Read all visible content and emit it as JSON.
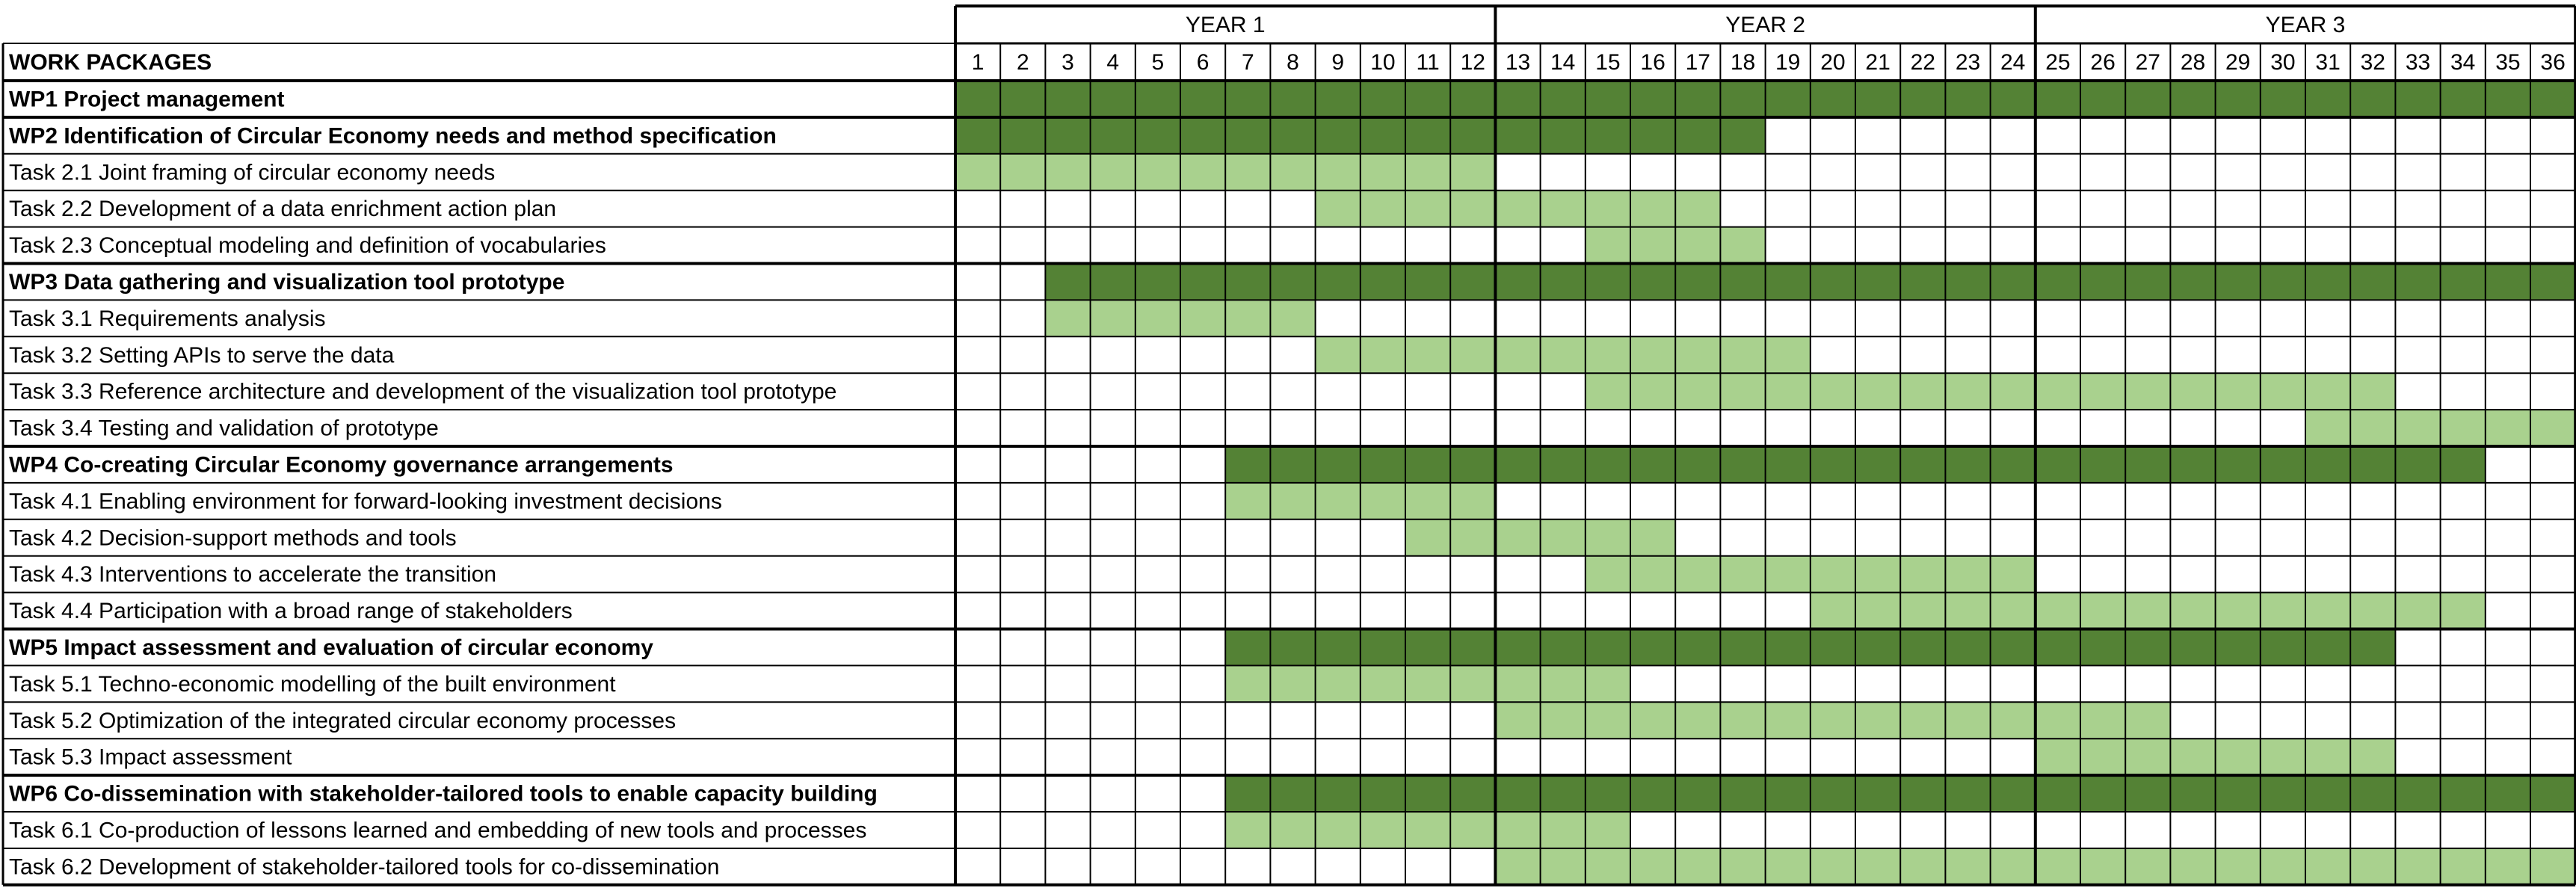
{
  "chart_data": {
    "type": "table",
    "subtype": "gantt",
    "header": "WORK PACKAGES",
    "years": [
      "YEAR 1",
      "YEAR 2",
      "YEAR 3"
    ],
    "months": [
      1,
      2,
      3,
      4,
      5,
      6,
      7,
      8,
      9,
      10,
      11,
      12,
      13,
      14,
      15,
      16,
      17,
      18,
      19,
      20,
      21,
      22,
      23,
      24,
      25,
      26,
      27,
      28,
      29,
      30,
      31,
      32,
      33,
      34,
      35,
      36
    ],
    "colors": {
      "work_package_bar": "#548235",
      "task_bar": "#a9d18e",
      "grid": "#000000",
      "background": "#ffffff"
    },
    "rows": [
      {
        "label": "WP1 Project management",
        "kind": "wp",
        "start": 1,
        "end": 36
      },
      {
        "label": "WP2 Identification of Circular Economy needs and method specification",
        "kind": "wp",
        "start": 1,
        "end": 18
      },
      {
        "label": "Task 2.1 Joint framing of circular economy needs",
        "kind": "task",
        "start": 1,
        "end": 12
      },
      {
        "label": "Task 2.2 Development of a data enrichment action plan",
        "kind": "task",
        "start": 9,
        "end": 17
      },
      {
        "label": "Task 2.3 Conceptual modeling and definition of vocabularies",
        "kind": "task",
        "start": 15,
        "end": 18
      },
      {
        "label": "WP3 Data gathering and visualization tool prototype",
        "kind": "wp",
        "start": 3,
        "end": 36
      },
      {
        "label": "Task 3.1 Requirements analysis",
        "kind": "task",
        "start": 3,
        "end": 8
      },
      {
        "label": "Task 3.2 Setting APIs to serve the data",
        "kind": "task",
        "start": 9,
        "end": 19
      },
      {
        "label": "Task 3.3 Reference architecture and development of the visualization tool prototype",
        "kind": "task",
        "start": 15,
        "end": 32
      },
      {
        "label": "Task 3.4 Testing and validation of prototype",
        "kind": "task",
        "start": 31,
        "end": 36
      },
      {
        "label": "WP4 Co-creating Circular Economy governance arrangements",
        "kind": "wp",
        "start": 7,
        "end": 34
      },
      {
        "label": "Task 4.1 Enabling environment for forward-looking investment decisions",
        "kind": "task",
        "start": 7,
        "end": 12
      },
      {
        "label": "Task 4.2 Decision-support methods and tools",
        "kind": "task",
        "start": 11,
        "end": 16
      },
      {
        "label": "Task 4.3 Interventions to accelerate the transition",
        "kind": "task",
        "start": 15,
        "end": 24
      },
      {
        "label": "Task 4.4 Participation with a broad range of stakeholders",
        "kind": "task",
        "start": 20,
        "end": 34
      },
      {
        "label": "WP5 Impact assessment and evaluation of circular economy",
        "kind": "wp",
        "start": 7,
        "end": 32
      },
      {
        "label": "Task 5.1 Techno-economic modelling of the built environment",
        "kind": "task",
        "start": 7,
        "end": 15
      },
      {
        "label": "Task 5.2 Optimization of the integrated circular economy processes",
        "kind": "task",
        "start": 13,
        "end": 27
      },
      {
        "label": "Task 5.3 Impact assessment",
        "kind": "task",
        "start": 25,
        "end": 32
      },
      {
        "label": "WP6 Co-dissemination with stakeholder-tailored tools to enable capacity building",
        "kind": "wp",
        "start": 7,
        "end": 36
      },
      {
        "label": "Task 6.1 Co-production of lessons learned and embedding of new tools and processes",
        "kind": "task",
        "start": 7,
        "end": 15
      },
      {
        "label": "Task 6.2 Development of stakeholder-tailored tools for co-dissemination",
        "kind": "task",
        "start": 13,
        "end": 36
      }
    ]
  }
}
